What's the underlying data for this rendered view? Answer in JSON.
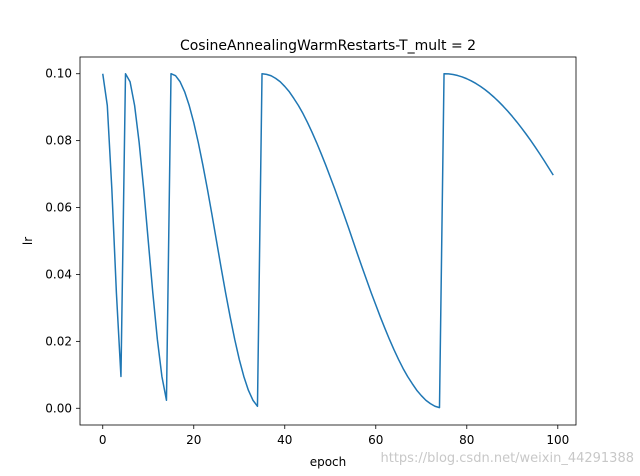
{
  "chart_data": {
    "type": "line",
    "title": "CosineAnnealingWarmRestarts-T_mult = 2",
    "xlabel": "epoch",
    "ylabel": "lr",
    "xlim": [
      -5,
      104
    ],
    "ylim": [
      -0.005,
      0.105
    ],
    "xticks": [
      0,
      20,
      40,
      60,
      80,
      100
    ],
    "xtick_labels": [
      "0",
      "20",
      "40",
      "60",
      "80",
      "100"
    ],
    "yticks": [
      0.0,
      0.02,
      0.04,
      0.06,
      0.08,
      0.1
    ],
    "ytick_labels": [
      "0.00",
      "0.02",
      "0.04",
      "0.06",
      "0.08",
      "0.10"
    ],
    "grid": false,
    "line_color": "#1f77b4",
    "series": [
      {
        "x": [
          0,
          1,
          2,
          3,
          4,
          5,
          6,
          7,
          8,
          9,
          10,
          11,
          12,
          13,
          14,
          15,
          16,
          17,
          18,
          19,
          20,
          21,
          22,
          23,
          24,
          25,
          26,
          27,
          28,
          29,
          30,
          31,
          32,
          33,
          34,
          35,
          36,
          37,
          38,
          39,
          40,
          41,
          42,
          43,
          44,
          45,
          46,
          47,
          48,
          49,
          50,
          51,
          52,
          53,
          54,
          55,
          56,
          57,
          58,
          59,
          60,
          61,
          62,
          63,
          64,
          65,
          66,
          67,
          68,
          69,
          70,
          71,
          72,
          73,
          74,
          75,
          76,
          77,
          78,
          79,
          80,
          81,
          82,
          83,
          84,
          85,
          86,
          87,
          88,
          89,
          90,
          91,
          92,
          93,
          94,
          95,
          96,
          97,
          98,
          99
        ],
        "values": [
          0.1,
          0.0905,
          0.0655,
          0.0345,
          0.0095,
          0.1,
          0.0976,
          0.0905,
          0.0794,
          0.0655,
          0.05,
          0.0345,
          0.0206,
          0.0095,
          0.0024,
          0.1,
          0.0994,
          0.0976,
          0.0946,
          0.0905,
          0.0854,
          0.0794,
          0.0727,
          0.0655,
          0.0579,
          0.05,
          0.0421,
          0.0345,
          0.0273,
          0.0206,
          0.0146,
          0.0095,
          0.0054,
          0.0024,
          0.0006,
          0.1,
          0.0998,
          0.0994,
          0.0986,
          0.0976,
          0.0962,
          0.0946,
          0.0926,
          0.0905,
          0.0881,
          0.0854,
          0.0825,
          0.0794,
          0.0761,
          0.0727,
          0.0691,
          0.0655,
          0.0617,
          0.0579,
          0.054,
          0.05,
          0.046,
          0.0421,
          0.0383,
          0.0345,
          0.0309,
          0.0273,
          0.0239,
          0.0206,
          0.0175,
          0.0146,
          0.0119,
          0.0095,
          0.0074,
          0.0054,
          0.0038,
          0.0024,
          0.0014,
          0.0006,
          0.0002,
          0.1,
          0.09994,
          0.09976,
          0.09946,
          0.09904,
          0.0985,
          0.09785,
          0.09709,
          0.09622,
          0.09525,
          0.09416,
          0.09297,
          0.09168,
          0.09029,
          0.08881,
          0.08724,
          0.08558,
          0.08384,
          0.08202,
          0.08012,
          0.07815,
          0.07612,
          0.07402,
          0.07186,
          0.0697
        ]
      }
    ]
  },
  "watermark": "https://blog.csdn.net/weixin_44291388"
}
